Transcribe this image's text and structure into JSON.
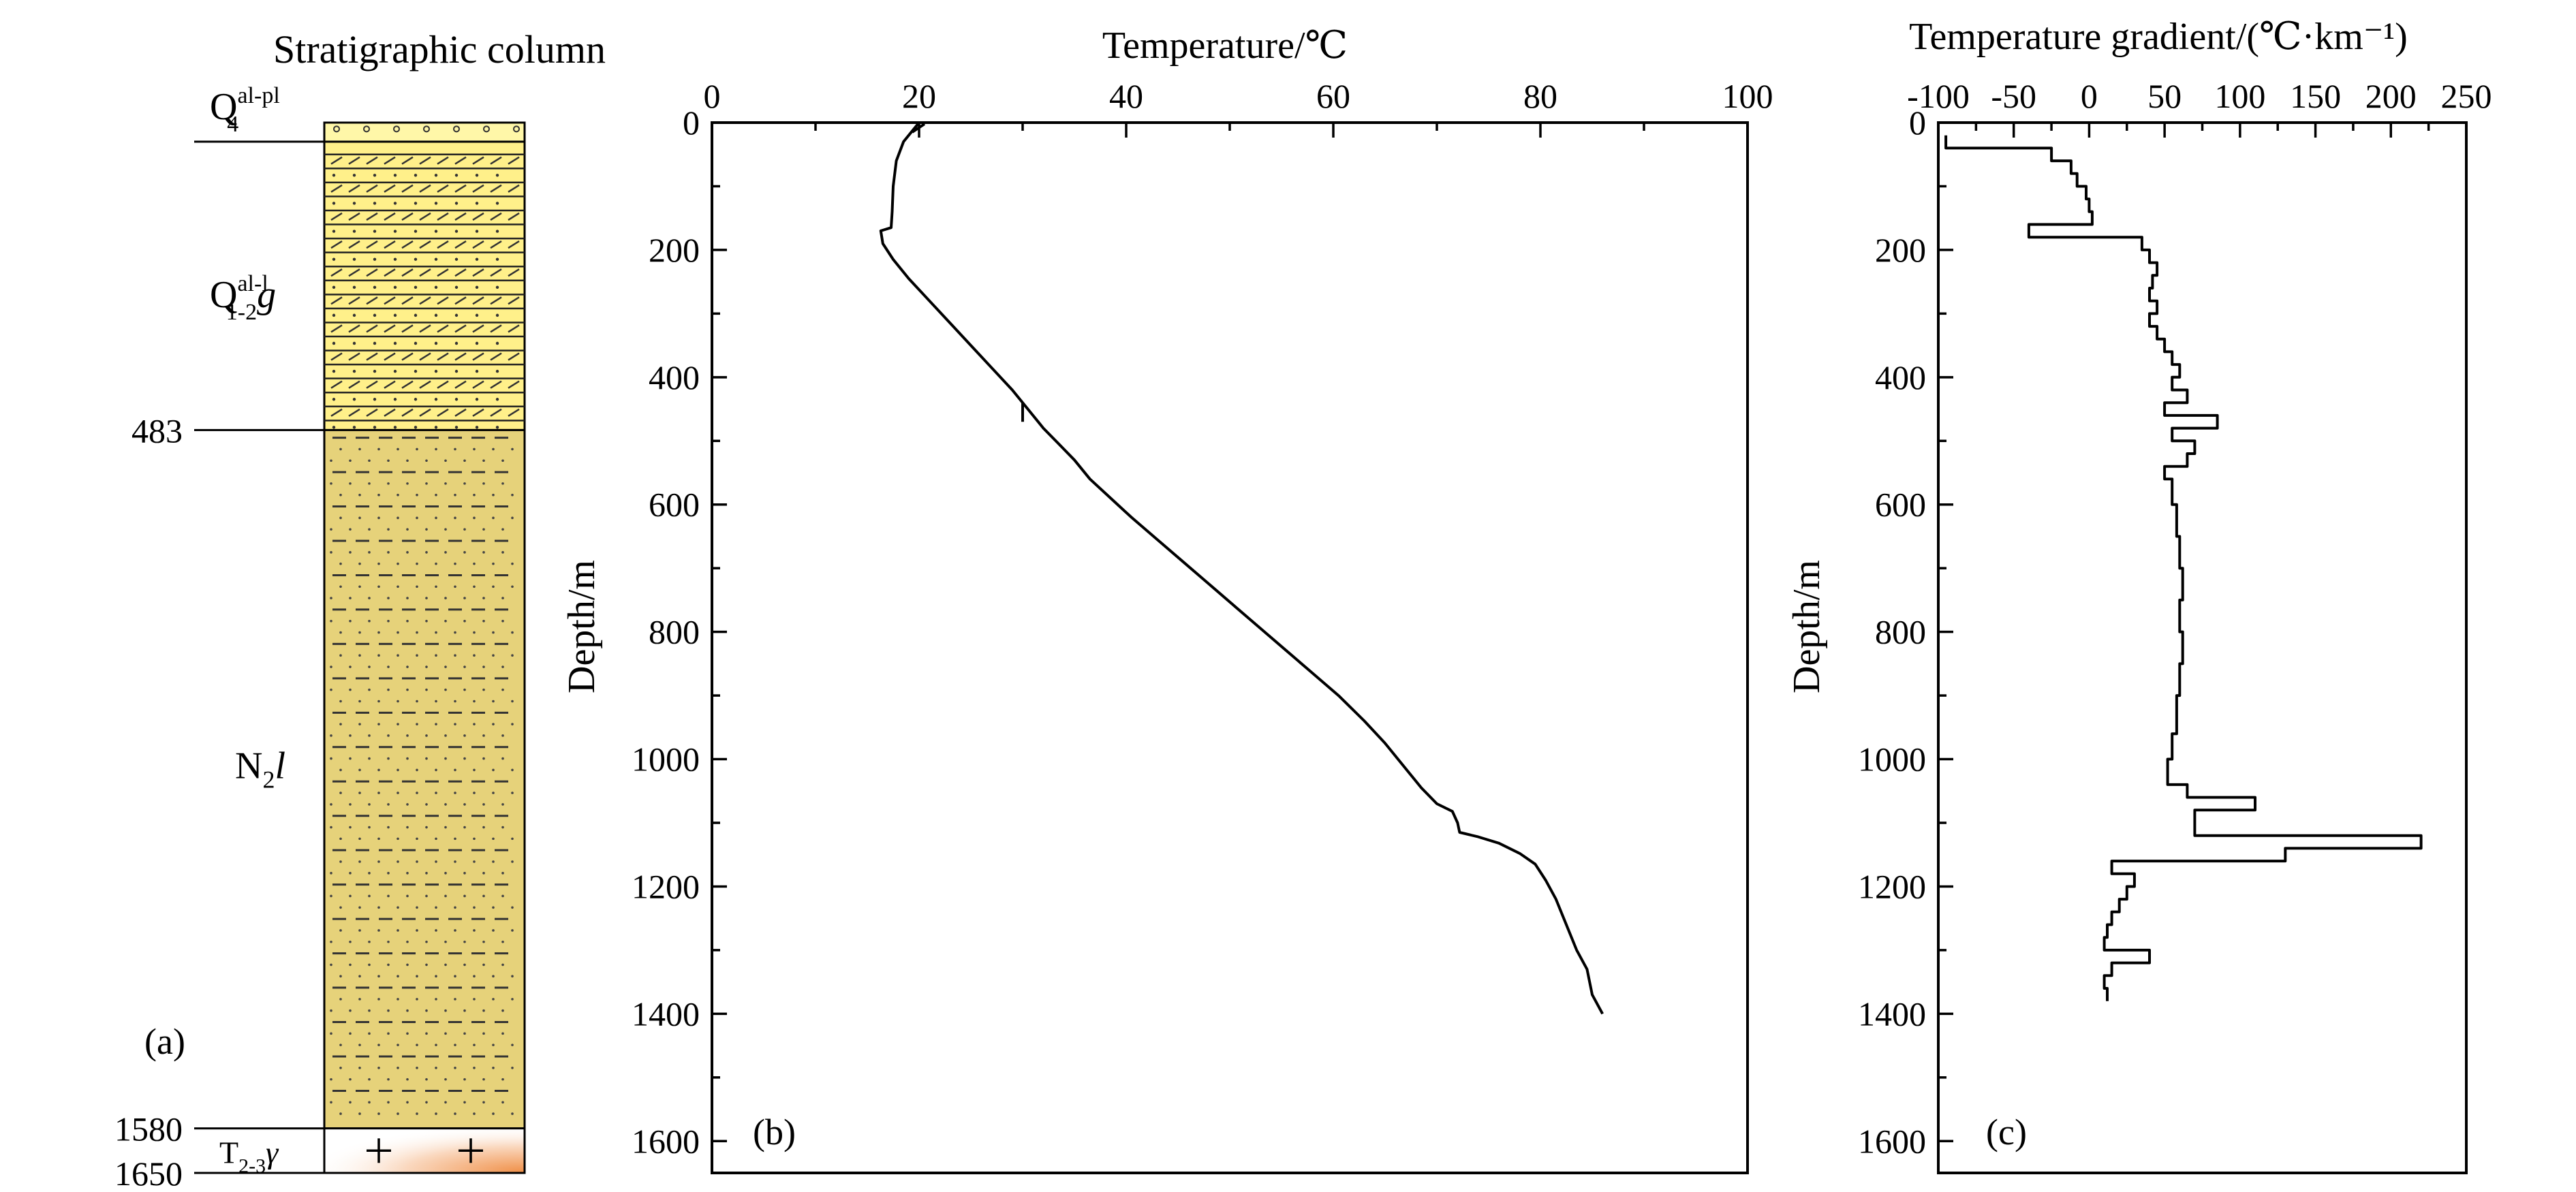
{
  "panel_a": {
    "title": "Stratigraphic column",
    "tag": "(a)",
    "depth_marks": [
      483,
      1580,
      1650
    ],
    "units": [
      {
        "symbol": "Q",
        "sub": "4",
        "sup": "al-pl",
        "suffix": "",
        "top": 0,
        "bottom": 30,
        "fill": "#fff7a8"
      },
      {
        "symbol": "Q",
        "sub": "1-2",
        "sup": "al-l",
        "suffix": "g",
        "top": 30,
        "bottom": 483,
        "fill": "#fff08a"
      },
      {
        "symbol": "N",
        "sub": "2",
        "sup": "",
        "suffix": "l",
        "top": 483,
        "bottom": 1580,
        "fill": "#e6d27a"
      },
      {
        "symbol": "T",
        "sub": "2-3",
        "sup": "",
        "suffix": "γ",
        "top": 1580,
        "bottom": 1650,
        "fill": "#ffffff"
      }
    ],
    "colors": {
      "granite_accent": "#f0914a"
    }
  },
  "chart_data": [
    {
      "type": "line",
      "tag": "(b)",
      "title": "",
      "xlabel": "Temperature/℃",
      "ylabel": "Depth/m",
      "xlim": [
        0,
        100
      ],
      "ylim": [
        0,
        1650
      ],
      "y_inverted": true,
      "x_axis_position": "top",
      "xticks": [
        0,
        20,
        40,
        60,
        80,
        100
      ],
      "yticks": [
        0,
        200,
        400,
        600,
        800,
        1000,
        1200,
        1400,
        1600
      ],
      "series": [
        {
          "points": [
            [
              20,
              0
            ],
            [
              19.5,
              10
            ],
            [
              18.5,
              30
            ],
            [
              17.8,
              60
            ],
            [
              17.5,
              100
            ],
            [
              17.4,
              140
            ],
            [
              17.3,
              165
            ],
            [
              16.3,
              170
            ],
            [
              16.5,
              190
            ],
            [
              17.5,
              215
            ],
            [
              19,
              245
            ],
            [
              21,
              280
            ],
            [
              23,
              315
            ],
            [
              25,
              350
            ],
            [
              27,
              385
            ],
            [
              29,
              420
            ],
            [
              30.5,
              450
            ],
            [
              32,
              480
            ],
            [
              33.5,
              505
            ],
            [
              35,
              530
            ],
            [
              36.5,
              560
            ],
            [
              38.5,
              590
            ],
            [
              40.5,
              620
            ],
            [
              43,
              655
            ],
            [
              45.5,
              690
            ],
            [
              48,
              725
            ],
            [
              50.5,
              760
            ],
            [
              53,
              795
            ],
            [
              55.5,
              830
            ],
            [
              58,
              865
            ],
            [
              60.5,
              900
            ],
            [
              63,
              940
            ],
            [
              65,
              975
            ],
            [
              67,
              1015
            ],
            [
              68.5,
              1045
            ],
            [
              70,
              1070
            ],
            [
              71.5,
              1082
            ],
            [
              72,
              1100
            ],
            [
              72.2,
              1115
            ],
            [
              74,
              1122
            ],
            [
              76,
              1132
            ],
            [
              78,
              1148
            ],
            [
              79.5,
              1165
            ],
            [
              80.5,
              1190
            ],
            [
              81.5,
              1220
            ],
            [
              82.5,
              1260
            ],
            [
              83.5,
              1300
            ],
            [
              84.5,
              1330
            ],
            [
              85,
              1370
            ],
            [
              86,
              1400
            ]
          ]
        }
      ]
    },
    {
      "type": "line",
      "tag": "(c)",
      "title": "",
      "xlabel": "Temperature gradient/(℃·km⁻¹)",
      "ylabel": "Depth/m",
      "xlim": [
        -100,
        250
      ],
      "ylim": [
        0,
        1650
      ],
      "y_inverted": true,
      "x_axis_position": "top",
      "xticks": [
        -100,
        -50,
        0,
        50,
        100,
        150,
        200,
        250
      ],
      "yticks": [
        0,
        200,
        400,
        600,
        800,
        1000,
        1200,
        1400,
        1600
      ],
      "series": [
        {
          "step_intervals": [
            [
              -95,
              20,
              40
            ],
            [
              -25,
              40,
              60
            ],
            [
              -12,
              60,
              80
            ],
            [
              -8,
              80,
              100
            ],
            [
              -2,
              100,
              120
            ],
            [
              0,
              120,
              140
            ],
            [
              2,
              140,
              160
            ],
            [
              -40,
              160,
              180
            ],
            [
              35,
              180,
              200
            ],
            [
              40,
              200,
              220
            ],
            [
              45,
              220,
              240
            ],
            [
              42,
              240,
              260
            ],
            [
              40,
              260,
              280
            ],
            [
              45,
              280,
              300
            ],
            [
              40,
              300,
              320
            ],
            [
              45,
              320,
              340
            ],
            [
              50,
              340,
              360
            ],
            [
              55,
              360,
              380
            ],
            [
              60,
              380,
              400
            ],
            [
              55,
              400,
              420
            ],
            [
              65,
              420,
              440
            ],
            [
              50,
              440,
              460
            ],
            [
              85,
              460,
              480
            ],
            [
              55,
              480,
              500
            ],
            [
              70,
              500,
              520
            ],
            [
              65,
              520,
              540
            ],
            [
              50,
              540,
              560
            ],
            [
              55,
              560,
              600
            ],
            [
              58,
              600,
              650
            ],
            [
              60,
              650,
              700
            ],
            [
              62,
              700,
              750
            ],
            [
              60,
              750,
              800
            ],
            [
              62,
              800,
              850
            ],
            [
              60,
              850,
              900
            ],
            [
              58,
              900,
              960
            ],
            [
              55,
              960,
              1000
            ],
            [
              52,
              1000,
              1040
            ],
            [
              65,
              1040,
              1060
            ],
            [
              110,
              1060,
              1080
            ],
            [
              70,
              1080,
              1120
            ],
            [
              220,
              1120,
              1140
            ],
            [
              130,
              1140,
              1160
            ],
            [
              15,
              1160,
              1180
            ],
            [
              30,
              1180,
              1200
            ],
            [
              25,
              1200,
              1220
            ],
            [
              20,
              1220,
              1240
            ],
            [
              15,
              1240,
              1260
            ],
            [
              12,
              1260,
              1280
            ],
            [
              10,
              1280,
              1300
            ],
            [
              40,
              1300,
              1320
            ],
            [
              15,
              1320,
              1340
            ],
            [
              10,
              1340,
              1360
            ],
            [
              12,
              1360,
              1380
            ]
          ]
        }
      ]
    }
  ]
}
